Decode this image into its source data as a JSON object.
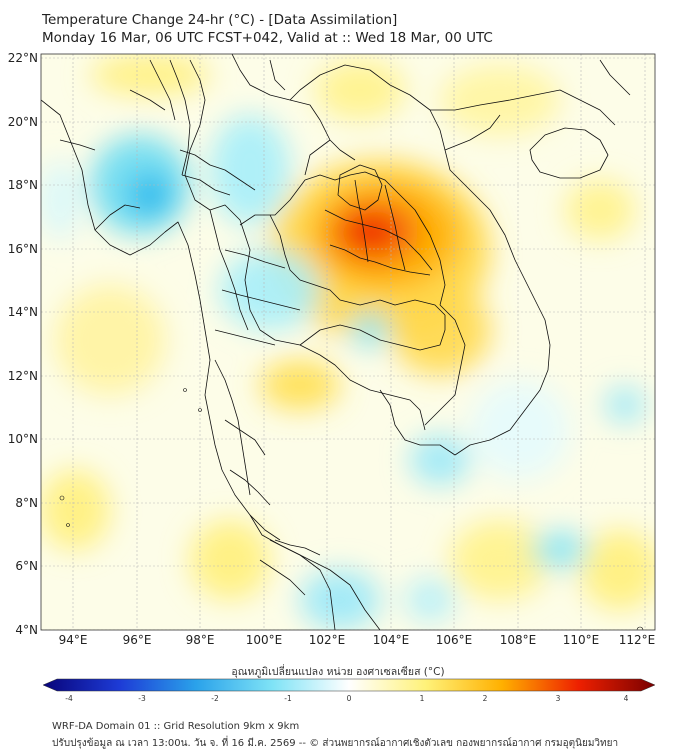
{
  "header": {
    "title_line1": "Temperature Change 24-hr (°C) - [Data Assimilation]",
    "title_line2": "Monday 16 Mar, 06 UTC FCST+042, Valid at :: Wed 18 Mar, 00 UTC"
  },
  "map": {
    "lat_labels": [
      "22°N",
      "20°N",
      "18°N",
      "16°N",
      "14°N",
      "12°N",
      "10°N",
      "8°N",
      "6°N",
      "4°N"
    ],
    "lon_labels": [
      "94°E",
      "96°E",
      "98°E",
      "100°E",
      "102°E",
      "104°E",
      "106°E",
      "108°E",
      "110°E",
      "112°E"
    ],
    "colors": {
      "gridline": "#b8b8b8",
      "border": "#111111",
      "water_bg": "#fdfde8"
    }
  },
  "colorbar": {
    "title": "อุณหภูมิเปลี่ยนแปลง หน่วย องศาเซลเซียส (°C)",
    "ticks": [
      "-4",
      "-3",
      "-2",
      "-1",
      "0",
      "1",
      "2",
      "3",
      "4"
    ],
    "min": -4,
    "max": 4,
    "colors": [
      "#08047a",
      "#1d3bd6",
      "#2aa2ea",
      "#7fe3f6",
      "#ffffff",
      "#fff27a",
      "#ffb000",
      "#ee2000",
      "#7a0000"
    ]
  },
  "footer": {
    "line1": "WRF-DA Domain 01 :: Grid Resolution 9km x 9km",
    "line2": "ปรับปรุงข้อมูล ณ เวลา 13:00น. วัน จ. ที่ 16 มี.ค. 2569 -- © ส่วนพยากรณ์อากาศเชิงตัวเลข กองพยากรณ์อากาศ กรมอุตุนิยมวิทยา"
  }
}
